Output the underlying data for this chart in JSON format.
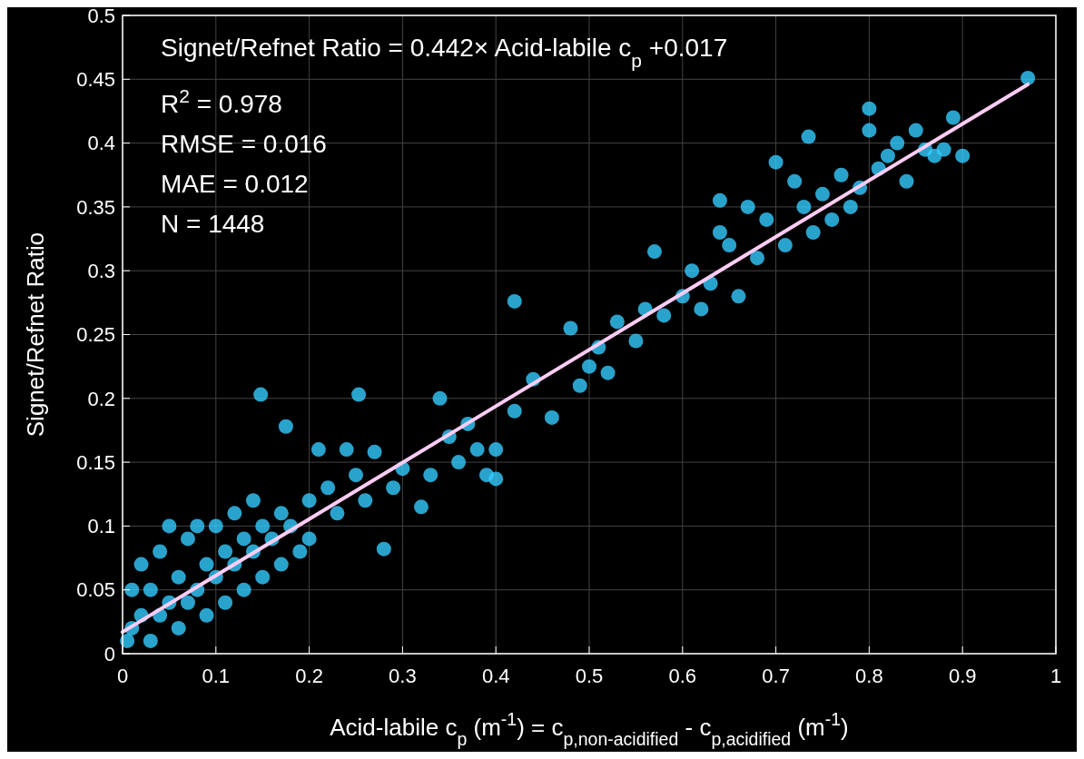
{
  "chart_data": {
    "type": "scatter",
    "xlabel": "Acid-labile c$_{p}$ (m$^{-1}$) = c$_{p,non-acidified}$ - c$_{p,acidified}$ (m$^{-1}$)",
    "ylabel": "Signet/Refnet Ratio",
    "annotations": [
      "Signet/Refnet Ratio = 0.442× Acid-labile c$_{p}$ +0.017",
      "R$^{2}$ = 0.978",
      "RMSE = 0.016",
      "MAE = 0.012",
      "N = 1448"
    ],
    "xlim": [
      0,
      1
    ],
    "ylim": [
      0,
      0.5
    ],
    "xticks": [
      0,
      0.1,
      0.2,
      0.3,
      0.4,
      0.5,
      0.6,
      0.7,
      0.8,
      0.9,
      1
    ],
    "yticks": [
      0,
      0.05,
      0.1,
      0.15,
      0.2,
      0.25,
      0.3,
      0.35,
      0.4,
      0.45,
      0.5
    ],
    "grid": true,
    "marker": "circle",
    "series": [
      {
        "color": "#33ccff",
        "x": [
          0.005,
          0.01,
          0.01,
          0.02,
          0.02,
          0.03,
          0.03,
          0.04,
          0.04,
          0.05,
          0.05,
          0.06,
          0.06,
          0.07,
          0.07,
          0.08,
          0.08,
          0.09,
          0.09,
          0.1,
          0.1,
          0.11,
          0.11,
          0.12,
          0.12,
          0.13,
          0.13,
          0.14,
          0.14,
          0.15,
          0.15,
          0.148,
          0.16,
          0.17,
          0.17,
          0.175,
          0.18,
          0.19,
          0.2,
          0.2,
          0.21,
          0.22,
          0.23,
          0.24,
          0.25,
          0.253,
          0.26,
          0.27,
          0.28,
          0.29,
          0.3,
          0.32,
          0.33,
          0.34,
          0.35,
          0.36,
          0.37,
          0.38,
          0.39,
          0.4,
          0.4,
          0.42,
          0.42,
          0.44,
          0.46,
          0.48,
          0.49,
          0.5,
          0.51,
          0.52,
          0.53,
          0.55,
          0.56,
          0.57,
          0.58,
          0.6,
          0.61,
          0.62,
          0.63,
          0.64,
          0.64,
          0.65,
          0.66,
          0.67,
          0.68,
          0.69,
          0.7,
          0.71,
          0.72,
          0.73,
          0.735,
          0.74,
          0.75,
          0.76,
          0.77,
          0.78,
          0.79,
          0.8,
          0.8,
          0.81,
          0.82,
          0.83,
          0.84,
          0.85,
          0.86,
          0.87,
          0.88,
          0.89,
          0.9,
          0.97
        ],
        "values": [
          0.01,
          0.02,
          0.05,
          0.03,
          0.07,
          0.01,
          0.05,
          0.03,
          0.08,
          0.04,
          0.1,
          0.02,
          0.06,
          0.04,
          0.09,
          0.05,
          0.1,
          0.03,
          0.07,
          0.06,
          0.1,
          0.04,
          0.08,
          0.07,
          0.11,
          0.05,
          0.09,
          0.08,
          0.12,
          0.06,
          0.1,
          0.203,
          0.09,
          0.11,
          0.07,
          0.178,
          0.1,
          0.08,
          0.12,
          0.09,
          0.16,
          0.13,
          0.11,
          0.16,
          0.14,
          0.203,
          0.12,
          0.158,
          0.082,
          0.13,
          0.145,
          0.115,
          0.14,
          0.2,
          0.17,
          0.15,
          0.18,
          0.16,
          0.14,
          0.137,
          0.16,
          0.19,
          0.276,
          0.215,
          0.185,
          0.255,
          0.21,
          0.225,
          0.24,
          0.22,
          0.26,
          0.245,
          0.27,
          0.315,
          0.265,
          0.28,
          0.3,
          0.27,
          0.29,
          0.33,
          0.355,
          0.32,
          0.28,
          0.35,
          0.31,
          0.34,
          0.385,
          0.32,
          0.37,
          0.35,
          0.405,
          0.33,
          0.36,
          0.34,
          0.375,
          0.35,
          0.365,
          0.41,
          0.427,
          0.38,
          0.39,
          0.4,
          0.37,
          0.41,
          0.395,
          0.39,
          0.395,
          0.42,
          0.39,
          0.451
        ]
      },
      {
        "type": "line",
        "marker": "none",
        "color": "#ffccf5",
        "x": [
          0,
          0.97
        ],
        "values": [
          0.017,
          0.446
        ]
      }
    ]
  }
}
